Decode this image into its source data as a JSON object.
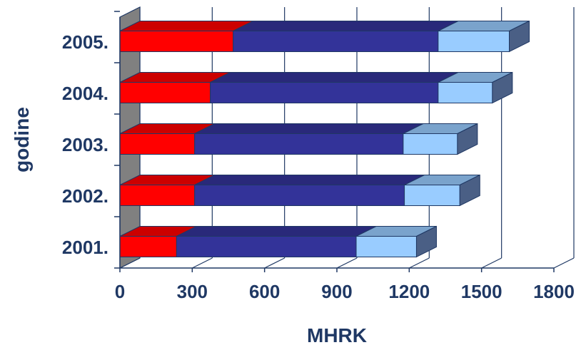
{
  "chart_data": {
    "type": "bar",
    "orientation": "horizontal",
    "stacked": true,
    "three_d": true,
    "categories": [
      "2001.",
      "2002.",
      "2003.",
      "2004.",
      "2005."
    ],
    "series": [
      {
        "values": [
          235,
          310,
          310,
          375,
          470
        ],
        "color": "#ff0000"
      },
      {
        "values": [
          745,
          870,
          865,
          945,
          850
        ],
        "color": "#333399"
      },
      {
        "values": [
          250,
          230,
          225,
          225,
          295
        ],
        "color": "#99ccff"
      }
    ],
    "xlabel": "MHRK",
    "ylabel": "godine",
    "xlim": [
      0,
      1800
    ],
    "xticks": [
      "0",
      "300",
      "600",
      "900",
      "1200",
      "1500",
      "1800"
    ],
    "grid": "vertical",
    "legend": "none",
    "wall_color": "#808080"
  }
}
